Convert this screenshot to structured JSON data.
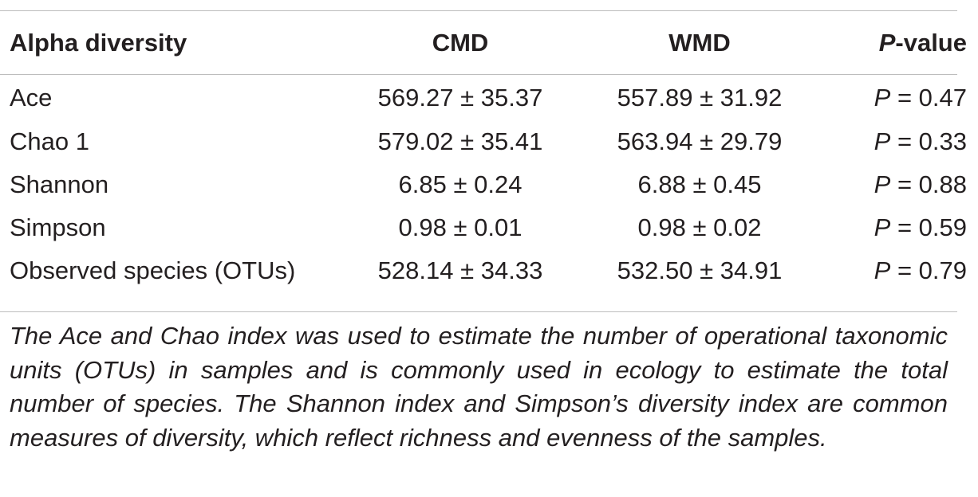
{
  "table": {
    "headers": {
      "label": "Alpha diversity",
      "cmd": "CMD",
      "wmd": "WMD",
      "p_italic": "P",
      "p_rest": "-value"
    },
    "rows": [
      {
        "label": "Ace",
        "cmd": "569.27 ± 35.37",
        "wmd": "557.89 ± 31.92",
        "p_italic": "P",
        "p_rest": " = 0.47"
      },
      {
        "label": "Chao 1",
        "cmd": "579.02 ± 35.41",
        "wmd": "563.94 ± 29.79",
        "p_italic": "P",
        "p_rest": " = 0.33"
      },
      {
        "label": "Shannon",
        "cmd": "6.85 ± 0.24",
        "wmd": "6.88 ± 0.45",
        "p_italic": "P",
        "p_rest": " = 0.88"
      },
      {
        "label": "Simpson",
        "cmd": "0.98 ± 0.01",
        "wmd": "0.98 ± 0.02",
        "p_italic": "P",
        "p_rest": " = 0.59"
      },
      {
        "label": "Observed species (OTUs)",
        "cmd": "528.14 ± 34.33",
        "wmd": "532.50 ± 34.91",
        "p_italic": "P",
        "p_rest": " = 0.79"
      }
    ]
  },
  "footnote": "The Ace and Chao index was used to estimate the number of operational taxonomic units (OTUs) in samples and is commonly used in ecology to estimate the total number of species. The Shannon index and Simpson’s diversity index are common measures of diversity, which reflect richness and evenness of the samples."
}
